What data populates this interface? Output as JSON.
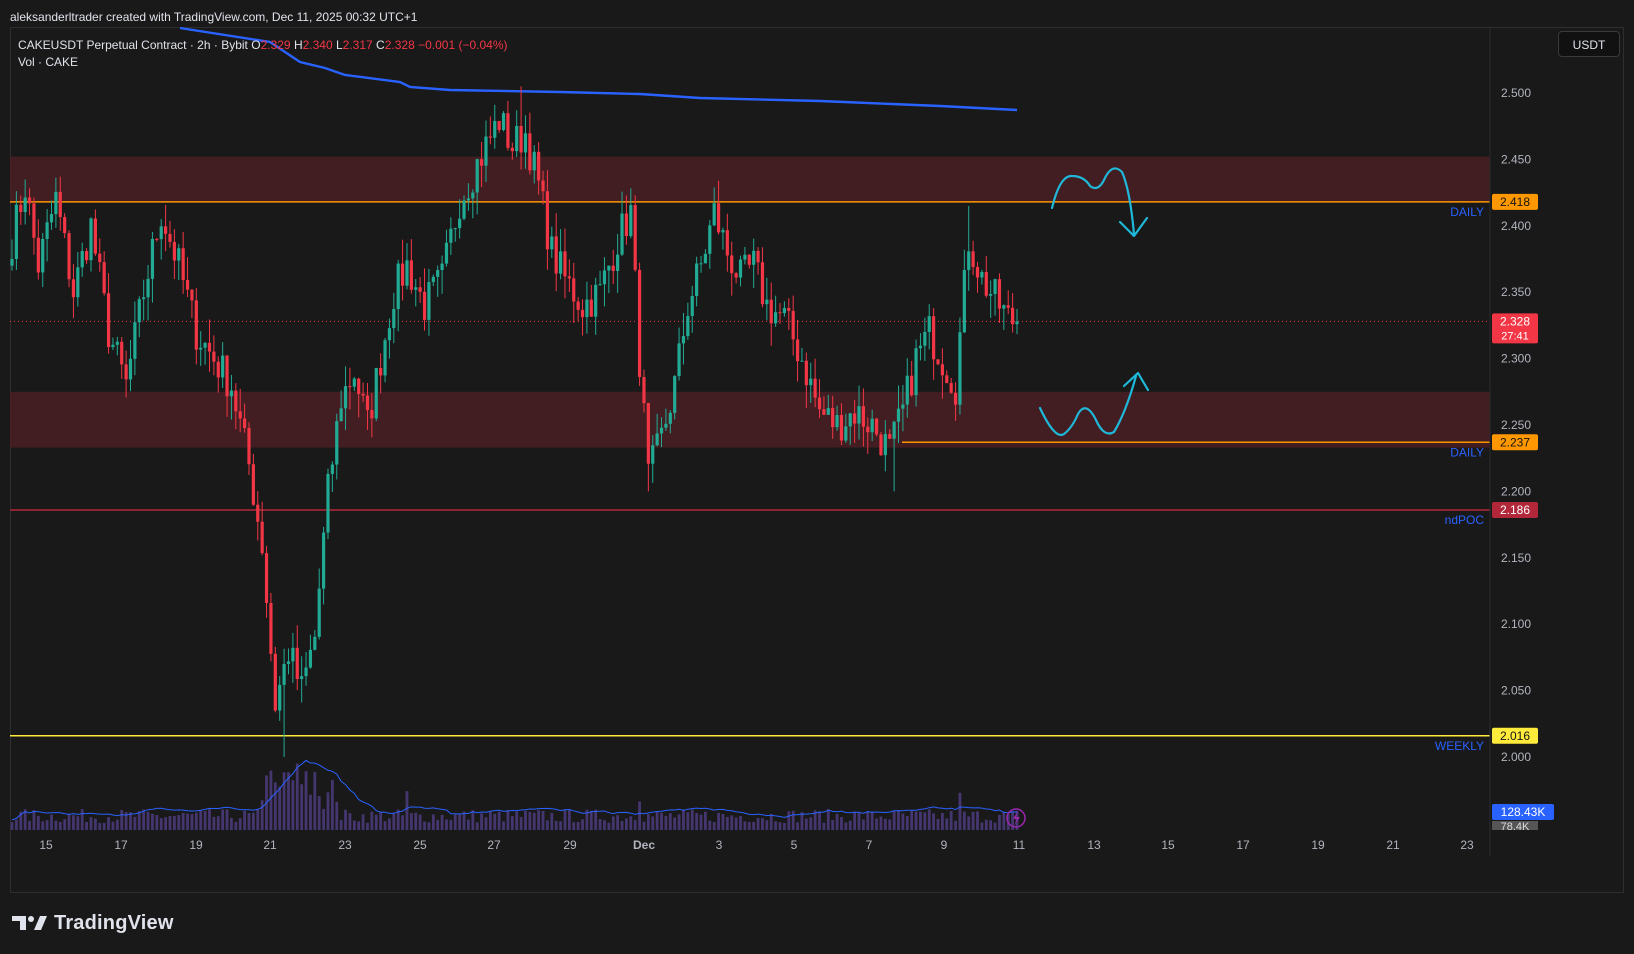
{
  "header": {
    "attribution": "aleksanderltrader created with TradingView.com, Dec 11, 2025 00:32 UTC+1"
  },
  "legend": {
    "symbol": "CAKEUSDT Perpetual Contract · 2h · Bybit",
    "o_label": "O",
    "o_value": "2.329",
    "h_label": "H",
    "h_value": "2.340",
    "l_label": "L",
    "l_value": "2.317",
    "c_label": "C",
    "c_value": "2.328",
    "change": "−0.001 (−0.04%)",
    "volume_label": "Vol · CAKE"
  },
  "currency_button": "USDT",
  "footer": {
    "brand": "TradingView"
  },
  "colors": {
    "up": "#22ab94",
    "down": "#f23645",
    "zone": "#4a2024",
    "daily_line": "#ff9800",
    "weekly_line": "#ffeb3b",
    "poc_line": "#b2283a",
    "ma_line": "#2962ff",
    "arrow": "#1fb8d8",
    "label_blue": "#2962ff",
    "volume_bar": "#4a3a7a",
    "volume_ma": "#2962ff"
  },
  "chart_data": {
    "type": "candlestick",
    "symbol": "CAKEUSDT",
    "interval": "2h",
    "ylim": [
      1.95,
      2.52
    ],
    "y_ticks": [
      "2.500",
      "2.450",
      "2.400",
      "2.350",
      "2.300",
      "2.250",
      "2.200",
      "2.150",
      "2.100",
      "2.050",
      "2.000"
    ],
    "x_ticks": [
      "15",
      "17",
      "19",
      "21",
      "23",
      "25",
      "27",
      "29",
      "Dec",
      "3",
      "5",
      "7",
      "9",
      "11",
      "13",
      "15",
      "17",
      "19",
      "21",
      "23"
    ],
    "price_trajectory": [
      [
        0,
        2.39
      ],
      [
        3,
        2.43
      ],
      [
        6,
        2.37
      ],
      [
        10,
        2.42
      ],
      [
        14,
        2.35
      ],
      [
        18,
        2.4
      ],
      [
        22,
        2.32
      ],
      [
        26,
        2.28
      ],
      [
        30,
        2.35
      ],
      [
        34,
        2.41
      ],
      [
        38,
        2.37
      ],
      [
        42,
        2.32
      ],
      [
        46,
        2.3
      ],
      [
        50,
        2.28
      ],
      [
        54,
        2.22
      ],
      [
        57,
        2.16
      ],
      [
        60,
        2.04
      ],
      [
        63,
        2.08
      ],
      [
        66,
        2.05
      ],
      [
        69,
        2.09
      ],
      [
        72,
        2.2
      ],
      [
        75,
        2.27
      ],
      [
        78,
        2.29
      ],
      [
        81,
        2.25
      ],
      [
        84,
        2.3
      ],
      [
        87,
        2.35
      ],
      [
        90,
        2.37
      ],
      [
        94,
        2.34
      ],
      [
        98,
        2.36
      ],
      [
        102,
        2.42
      ],
      [
        105,
        2.44
      ],
      [
        108,
        2.46
      ],
      [
        111,
        2.48
      ],
      [
        114,
        2.46
      ],
      [
        117,
        2.47
      ],
      [
        120,
        2.43
      ],
      [
        123,
        2.38
      ],
      [
        126,
        2.36
      ],
      [
        130,
        2.34
      ],
      [
        134,
        2.35
      ],
      [
        138,
        2.39
      ],
      [
        141,
        2.41
      ],
      [
        143,
        2.3
      ],
      [
        145,
        2.21
      ],
      [
        148,
        2.24
      ],
      [
        151,
        2.28
      ],
      [
        154,
        2.34
      ],
      [
        157,
        2.37
      ],
      [
        160,
        2.41
      ],
      [
        163,
        2.38
      ],
      [
        166,
        2.36
      ],
      [
        169,
        2.37
      ],
      [
        172,
        2.34
      ],
      [
        176,
        2.33
      ],
      [
        180,
        2.3
      ],
      [
        184,
        2.26
      ],
      [
        188,
        2.25
      ],
      [
        192,
        2.26
      ],
      [
        196,
        2.25
      ],
      [
        200,
        2.23
      ],
      [
        203,
        2.26
      ],
      [
        206,
        2.3
      ],
      [
        209,
        2.32
      ],
      [
        212,
        2.3
      ],
      [
        215,
        2.28
      ],
      [
        218,
        2.39
      ],
      [
        221,
        2.36
      ],
      [
        224,
        2.345
      ],
      [
        227,
        2.33
      ],
      [
        229,
        2.328
      ]
    ],
    "levels": [
      {
        "price": 2.418,
        "label": "2.418",
        "tag": "DAILY",
        "style": "daily"
      },
      {
        "price": 2.237,
        "label": "2.237",
        "tag": "DAILY",
        "style": "daily"
      },
      {
        "price": 2.186,
        "label": "2.186",
        "tag": "ndPOC",
        "style": "poc"
      },
      {
        "price": 2.016,
        "label": "2.016",
        "tag": "WEEKLY",
        "style": "weekly"
      }
    ],
    "zones": [
      {
        "from": 2.418,
        "to": 2.452
      },
      {
        "from": 2.233,
        "to": 2.275
      }
    ],
    "current_price": {
      "value": "2.328",
      "countdown": "27:41"
    },
    "volume": {
      "last_label": "128.43K",
      "sub_label": "78.4K"
    }
  }
}
